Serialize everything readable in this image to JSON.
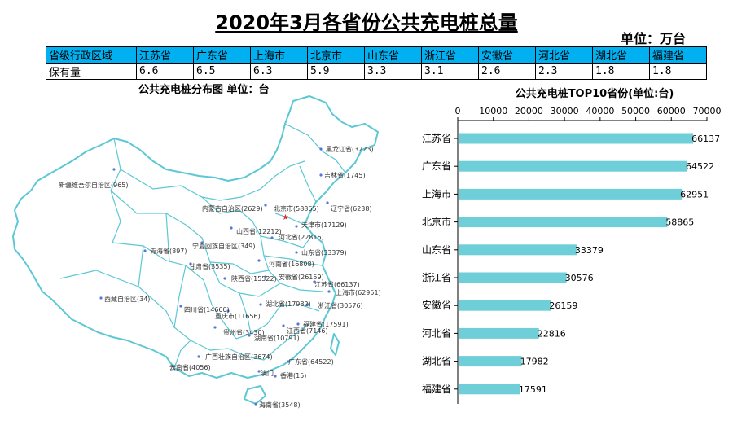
{
  "page": {
    "title": "2020年3月各省份公共充电桩总量",
    "unit": "单位：万台"
  },
  "table": {
    "header_label": "省级行政区域",
    "row_label": "保有量",
    "provinces": [
      "江苏省",
      "广东省",
      "上海市",
      "北京市",
      "山东省",
      "浙江省",
      "安徽省",
      "河北省",
      "湖北省",
      "福建省"
    ],
    "values": [
      "6.6",
      "6.5",
      "6.3",
      "5.9",
      "3.3",
      "3.1",
      "2.6",
      "2.3",
      "1.8",
      "1.8"
    ]
  },
  "map": {
    "title": "公共充电桩分布图  单位：台",
    "labels": [
      "黑龙江省(3223)",
      "吉林省(1745)",
      "辽宁省(6238)",
      "内蒙古自治区(2629)",
      "北京市(58865)",
      "天津市(17129)",
      "河北省(22816)",
      "山西省(12212)",
      "山东省(33379)",
      "新疆维吾尔自治区(965)",
      "青海省(897)",
      "宁夏回族自治区(349)",
      "甘肃省(3535)",
      "陕西省(15522)",
      "河南省(16808)",
      "安徽省(26159)",
      "江苏省(66137)",
      "上海市(62951)",
      "浙江省(30576)",
      "湖北省(17982)",
      "西藏自治区(34)",
      "四川省(14660)",
      "重庆市(11656)",
      "贵州省(3430)",
      "湖南省(10791)",
      "江西省(7146)",
      "福建省(17591)",
      "广西壮族自治区(3674)",
      "云南省(4056)",
      "广东省(64522)",
      "澳门",
      "香港(15)",
      "海南省(3548)"
    ]
  },
  "colors": {
    "accent": "#00b0f0",
    "bar": "#6fcfd9",
    "map_border": "#5bc8d3",
    "dot": "#5577dd",
    "beijing": "#e03030"
  },
  "chart_data": {
    "type": "bar",
    "orientation": "horizontal",
    "title": "公共充电桩TOP10省份(单位:台)",
    "categories": [
      "江苏省",
      "广东省",
      "上海市",
      "北京市",
      "山东省",
      "浙江省",
      "安徽省",
      "河北省",
      "湖北省",
      "福建省"
    ],
    "values": [
      66137,
      64522,
      62951,
      58865,
      33379,
      30576,
      26159,
      22816,
      17982,
      17591
    ],
    "xlim": [
      0,
      70000
    ],
    "xticks": [
      0,
      10000,
      20000,
      30000,
      40000,
      50000,
      60000,
      70000
    ],
    "xlabel": "",
    "ylabel": "",
    "grid": false,
    "axis_position": "top"
  }
}
